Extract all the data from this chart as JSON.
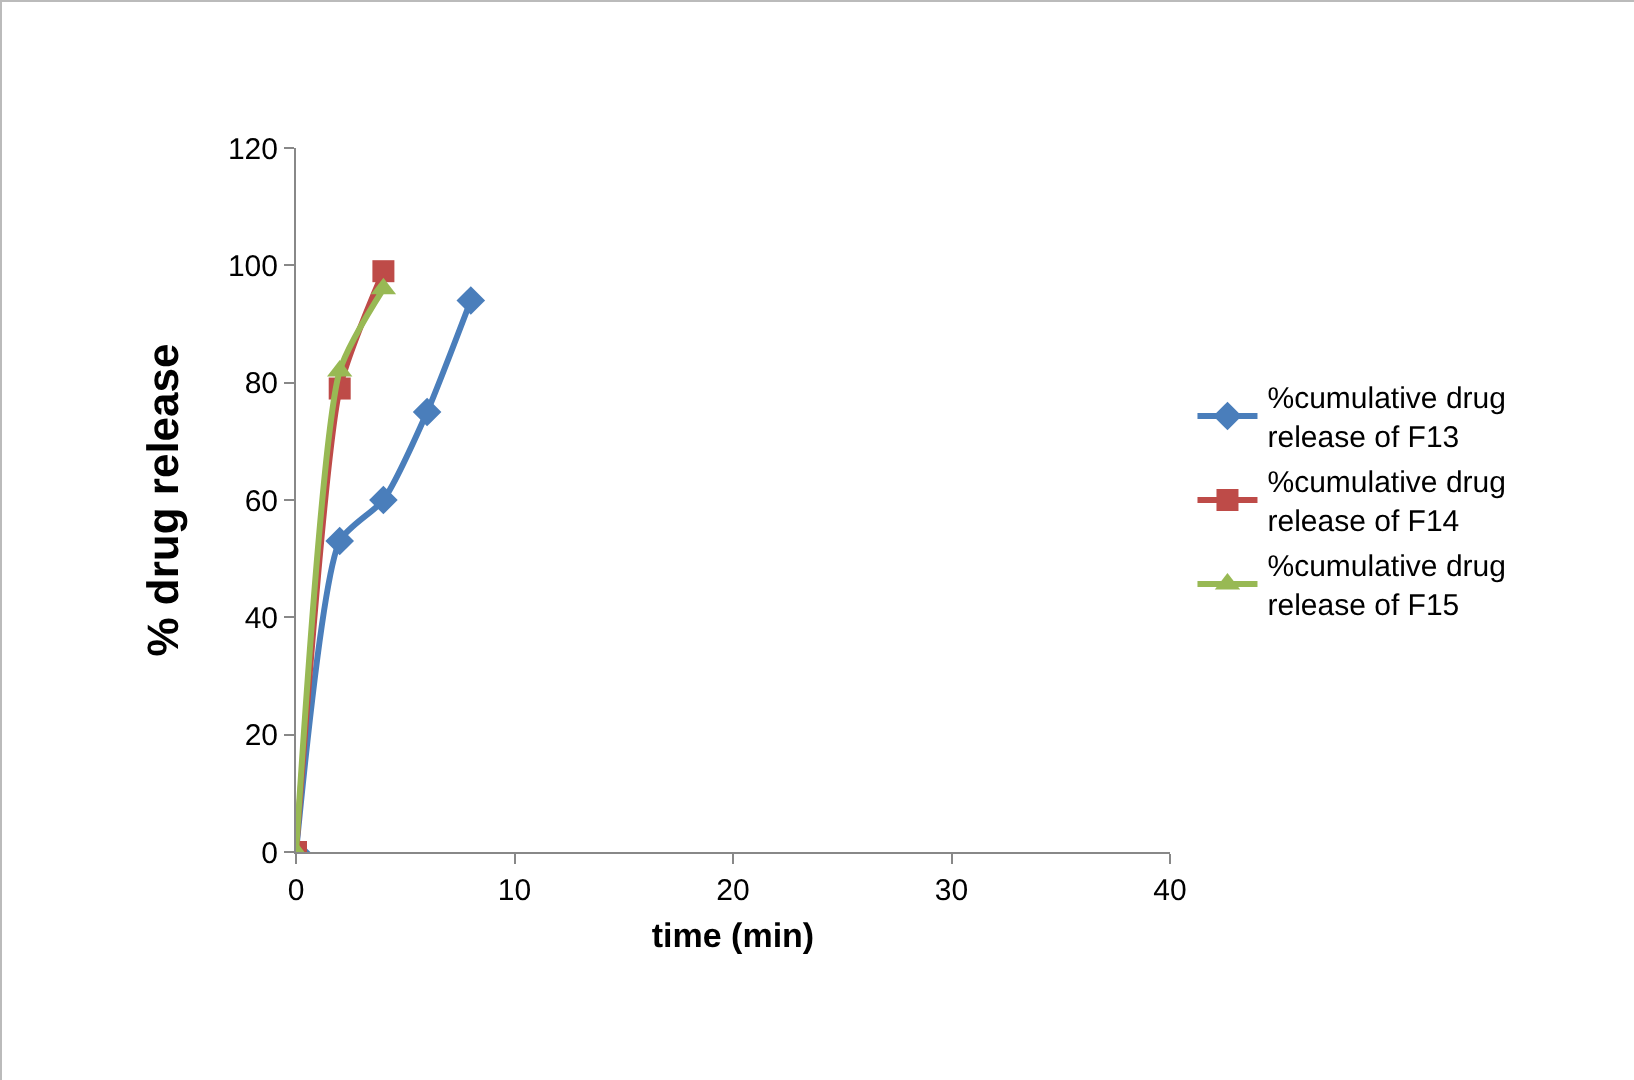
{
  "chart_data": {
    "type": "line",
    "xlabel": "time (min)",
    "ylabel": "% drug release",
    "xlim": [
      0,
      40
    ],
    "xticks": [
      0,
      10,
      20,
      30,
      40
    ],
    "ylim": [
      0,
      120
    ],
    "yticks": [
      0,
      20,
      40,
      60,
      80,
      100,
      120
    ],
    "grid": false,
    "legend": "right",
    "line_style": "solid",
    "series": [
      {
        "name": "%cumulative drug release of F13",
        "color": "#4a7ebb",
        "marker": "diamond",
        "x": [
          0,
          2,
          4,
          6,
          8
        ],
        "values": [
          0,
          53,
          60,
          75,
          94
        ]
      },
      {
        "name": "%cumulative drug release of F14",
        "color": "#be4b48",
        "marker": "square",
        "x": [
          0,
          2,
          4
        ],
        "values": [
          0,
          79,
          99
        ]
      },
      {
        "name": "%cumulative drug release of F15",
        "color": "#98b954",
        "marker": "triangle",
        "x": [
          0,
          2,
          4
        ],
        "values": [
          0,
          82,
          96
        ]
      }
    ]
  }
}
